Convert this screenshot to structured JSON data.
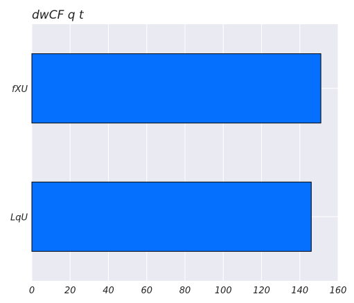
{
  "chart_data": {
    "type": "bar",
    "orientation": "horizontal",
    "title": "dwCF  q t",
    "xlabel": "",
    "ylabel": "",
    "categories": [
      "fXU",
      "LqU"
    ],
    "values": [
      151,
      146
    ],
    "xlim": [
      0,
      160
    ],
    "xticks": [
      0,
      20,
      40,
      60,
      80,
      100,
      120,
      140,
      160
    ],
    "grid": true,
    "legend": "none",
    "colors": {
      "bar": "#0470fd",
      "bar_edge": "#000000",
      "plot_background": "#eaeaf2",
      "grid": "#ffffff"
    }
  }
}
